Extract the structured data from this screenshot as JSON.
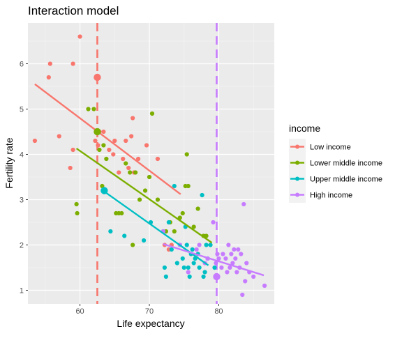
{
  "chart_data": {
    "type": "scatter",
    "title": "Interaction model",
    "xlabel": "Life expectancy",
    "ylabel": "Fertility rate",
    "xlim": [
      52.5,
      88
    ],
    "ylim": [
      0.7,
      6.9
    ],
    "x_ticks": [
      60,
      70,
      80
    ],
    "x_tick_labels": [
      "60",
      "70",
      "80"
    ],
    "y_ticks": [
      1,
      2,
      3,
      4,
      5,
      6
    ],
    "y_tick_labels": [
      "1",
      "2",
      "3",
      "4",
      "5",
      "6"
    ],
    "grid": true,
    "legend": {
      "title": "income",
      "position": "right",
      "entries": [
        "Low income",
        "Lower middle income",
        "Upper middle income",
        "High income"
      ]
    },
    "colors": {
      "Low income": "#F8766D",
      "Lower middle income": "#7CAE00",
      "Upper middle income": "#00BFC4",
      "High income": "#C77CFF"
    },
    "vlines": [
      {
        "series": "Low income",
        "x": 62.5
      },
      {
        "series": "High income",
        "x": 79.7
      }
    ],
    "series": [
      {
        "name": "Low income",
        "points": [
          [
            53.5,
            4.3
          ],
          [
            55.5,
            5.7
          ],
          [
            55.7,
            6.0
          ],
          [
            57.0,
            4.4
          ],
          [
            58.6,
            3.7
          ],
          [
            59.0,
            6.0
          ],
          [
            59.0,
            4.1
          ],
          [
            60.0,
            6.6
          ],
          [
            62.2,
            4.3
          ],
          [
            62.6,
            4.2
          ],
          [
            62.8,
            4.5
          ],
          [
            63.4,
            4.5
          ],
          [
            64.2,
            4.1
          ],
          [
            64.8,
            4.0
          ],
          [
            65.0,
            4.3
          ],
          [
            65.6,
            3.6
          ],
          [
            66.2,
            3.9
          ],
          [
            66.6,
            4.3
          ],
          [
            67.0,
            3.7
          ],
          [
            67.4,
            4.4
          ],
          [
            67.6,
            4.8
          ],
          [
            67.8,
            3.6
          ],
          [
            68.4,
            3.9
          ],
          [
            69.6,
            4.2
          ],
          [
            71.2,
            3.9
          ],
          [
            72.2,
            2.0
          ],
          [
            72.8,
            1.9
          ],
          [
            73.2,
            2.0
          ]
        ],
        "centroid": [
          62.5,
          5.7
        ],
        "fit": [
          [
            53.5,
            5.55
          ],
          [
            74.5,
            3.12
          ]
        ]
      },
      {
        "name": "Lower middle income",
        "points": [
          [
            59.5,
            2.9
          ],
          [
            59.6,
            2.7
          ],
          [
            61.2,
            5.0
          ],
          [
            62.0,
            5.0
          ],
          [
            62.4,
            4.5
          ],
          [
            62.8,
            4.1
          ],
          [
            63.2,
            3.3
          ],
          [
            63.4,
            4.2
          ],
          [
            63.8,
            3.9
          ],
          [
            65.2,
            2.7
          ],
          [
            65.6,
            2.7
          ],
          [
            66.0,
            2.7
          ],
          [
            66.6,
            3.8
          ],
          [
            67.2,
            3.6
          ],
          [
            67.6,
            2.0
          ],
          [
            68.0,
            3.6
          ],
          [
            68.6,
            3.0
          ],
          [
            69.4,
            3.2
          ],
          [
            70.0,
            3.5
          ],
          [
            70.4,
            4.9
          ],
          [
            71.2,
            3.0
          ],
          [
            72.0,
            2.3
          ],
          [
            72.4,
            2.3
          ],
          [
            73.0,
            2.5
          ],
          [
            73.6,
            2.3
          ],
          [
            74.4,
            2.6
          ],
          [
            74.8,
            2.7
          ],
          [
            75.2,
            3.3
          ],
          [
            75.4,
            4.0
          ],
          [
            75.6,
            3.3
          ],
          [
            76.4,
            2.4
          ],
          [
            77.0,
            2.8
          ],
          [
            77.8,
            2.2
          ],
          [
            78.2,
            2.2
          ]
        ],
        "centroid": [
          62.5,
          4.5
        ],
        "fit": [
          [
            59.5,
            4.13
          ],
          [
            79.0,
            2.05
          ]
        ]
      },
      {
        "name": "Upper middle income",
        "points": [
          [
            64.4,
            2.3
          ],
          [
            66.4,
            2.2
          ],
          [
            69.2,
            2.1
          ],
          [
            70.2,
            2.5
          ],
          [
            72.0,
            2.3
          ],
          [
            72.2,
            1.5
          ],
          [
            72.4,
            1.3
          ],
          [
            72.8,
            2.5
          ],
          [
            73.2,
            1.9
          ],
          [
            73.6,
            3.3
          ],
          [
            74.0,
            1.6
          ],
          [
            74.4,
            2.0
          ],
          [
            74.8,
            1.7
          ],
          [
            75.0,
            1.5
          ],
          [
            75.2,
            2.4
          ],
          [
            75.4,
            2.0
          ],
          [
            75.6,
            1.5
          ],
          [
            75.8,
            1.3
          ],
          [
            76.0,
            1.8
          ],
          [
            76.2,
            1.9
          ],
          [
            76.4,
            1.6
          ],
          [
            76.6,
            1.7
          ],
          [
            77.0,
            1.8
          ],
          [
            77.2,
            1.5
          ],
          [
            77.6,
            3.1
          ],
          [
            77.8,
            1.3
          ],
          [
            78.0,
            1.4
          ],
          [
            78.2,
            2.0
          ],
          [
            78.4,
            1.7
          ],
          [
            78.8,
            2.0
          ],
          [
            79.4,
            1.5
          ]
        ],
        "centroid": [
          63.5,
          3.2
        ],
        "fit": [
          [
            63.5,
            3.18
          ],
          [
            78.5,
            1.55
          ]
        ]
      },
      {
        "name": "High income",
        "points": [
          [
            72.0,
            2.3
          ],
          [
            74.4,
            2.0
          ],
          [
            75.6,
            1.4
          ],
          [
            76.8,
            1.9
          ],
          [
            77.2,
            2.0
          ],
          [
            78.0,
            1.6
          ],
          [
            78.4,
            1.7
          ],
          [
            79.2,
            2.5
          ],
          [
            79.6,
            1.6
          ],
          [
            79.8,
            1.8
          ],
          [
            80.0,
            1.7
          ],
          [
            80.4,
            1.5
          ],
          [
            80.6,
            1.8
          ],
          [
            81.0,
            1.7
          ],
          [
            81.2,
            1.4
          ],
          [
            81.4,
            2.0
          ],
          [
            81.6,
            1.5
          ],
          [
            81.8,
            1.8
          ],
          [
            82.0,
            1.6
          ],
          [
            82.2,
            1.9
          ],
          [
            82.4,
            1.7
          ],
          [
            82.6,
            1.4
          ],
          [
            82.8,
            1.9
          ],
          [
            83.0,
            1.5
          ],
          [
            83.2,
            1.8
          ],
          [
            83.4,
            0.9
          ],
          [
            83.6,
            2.9
          ],
          [
            83.8,
            1.2
          ],
          [
            84.0,
            1.6
          ],
          [
            84.4,
            1.4
          ],
          [
            85.0,
            1.3
          ],
          [
            86.6,
            1.1
          ]
        ],
        "centroid": [
          79.7,
          1.3
        ],
        "fit": [
          [
            72.0,
            2.02
          ],
          [
            86.5,
            1.33
          ]
        ]
      }
    ]
  }
}
